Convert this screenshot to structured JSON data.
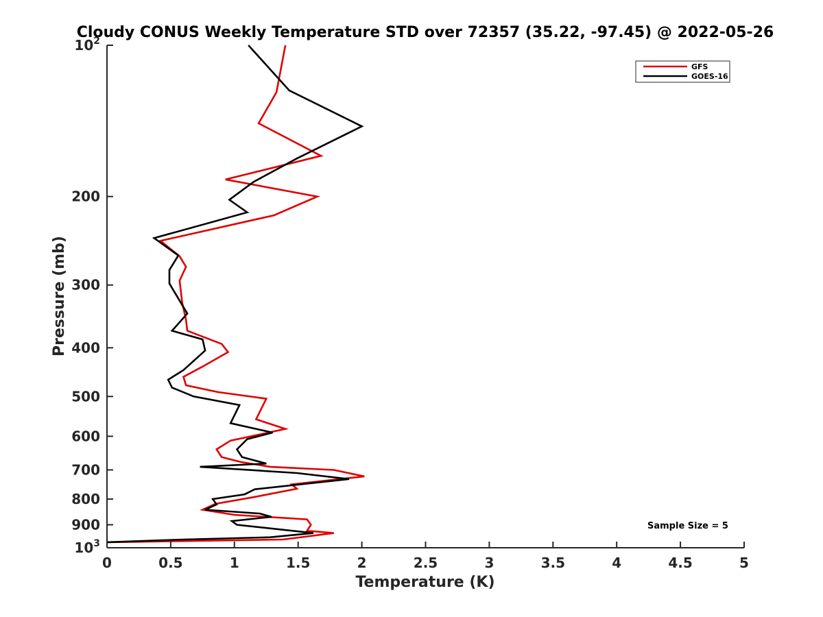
{
  "chart_data": {
    "type": "line",
    "title": "Cloudy CONUS Weekly Temperature STD over 72357 (35.22, -97.45) @ 2022-05-26",
    "xlabel": "Temperature (K)",
    "ylabel": "Pressure (mb)",
    "xlim": [
      0,
      5
    ],
    "ylim": [
      100,
      1000
    ],
    "y_scale": "log",
    "y_reversed": true,
    "x_ticks": [
      0,
      0.5,
      1,
      1.5,
      2,
      2.5,
      3,
      3.5,
      4,
      4.5,
      5
    ],
    "x_tick_labels": [
      "0",
      "0.5",
      "1",
      "1.5",
      "2",
      "2.5",
      "3",
      "3.5",
      "4",
      "4.5",
      "5"
    ],
    "y_ticks": [
      100,
      200,
      300,
      400,
      500,
      600,
      700,
      800,
      900,
      1000
    ],
    "y_tick_labels": [
      {
        "base": "10",
        "exp": "2"
      },
      {
        "base": "200",
        "exp": ""
      },
      {
        "base": "300",
        "exp": ""
      },
      {
        "base": "400",
        "exp": ""
      },
      {
        "base": "500",
        "exp": ""
      },
      {
        "base": "600",
        "exp": ""
      },
      {
        "base": "700",
        "exp": ""
      },
      {
        "base": "800",
        "exp": ""
      },
      {
        "base": "900",
        "exp": ""
      },
      {
        "base": "10",
        "exp": "3"
      }
    ],
    "grid": false,
    "legend_position": "top-right",
    "annotation": "Sample Size = 5",
    "series": [
      {
        "name": "GFS",
        "color": "#e00000",
        "points": [
          [
            1.4,
            100
          ],
          [
            1.33,
            124
          ],
          [
            1.19,
            143
          ],
          [
            1.68,
            166
          ],
          [
            0.93,
            185
          ],
          [
            1.65,
            200
          ],
          [
            1.31,
            218
          ],
          [
            0.42,
            245
          ],
          [
            0.57,
            263
          ],
          [
            0.62,
            276
          ],
          [
            0.57,
            294
          ],
          [
            0.59,
            325
          ],
          [
            0.62,
            352
          ],
          [
            0.63,
            370
          ],
          [
            0.9,
            393
          ],
          [
            0.95,
            408
          ],
          [
            0.75,
            436
          ],
          [
            0.6,
            457
          ],
          [
            0.62,
            475
          ],
          [
            0.87,
            490
          ],
          [
            1.25,
            505
          ],
          [
            1.17,
            555
          ],
          [
            1.4,
            580
          ],
          [
            1.2,
            595
          ],
          [
            0.97,
            612
          ],
          [
            0.86,
            637
          ],
          [
            0.9,
            660
          ],
          [
            1.05,
            675
          ],
          [
            1.28,
            690
          ],
          [
            1.78,
            700
          ],
          [
            2.02,
            721
          ],
          [
            1.45,
            748
          ],
          [
            1.49,
            763
          ],
          [
            1.15,
            793
          ],
          [
            0.85,
            818
          ],
          [
            0.75,
            840
          ],
          [
            1.0,
            860
          ],
          [
            1.57,
            878
          ],
          [
            1.6,
            900
          ],
          [
            1.57,
            925
          ],
          [
            1.78,
            935
          ],
          [
            1.38,
            963
          ],
          [
            0.0,
            975
          ]
        ]
      },
      {
        "name": "GOES-16",
        "color": "#000000",
        "points": [
          [
            1.11,
            100
          ],
          [
            1.43,
            123
          ],
          [
            2.0,
            145
          ],
          [
            1.49,
            168
          ],
          [
            1.15,
            187
          ],
          [
            0.96,
            203
          ],
          [
            1.1,
            215
          ],
          [
            0.37,
            242
          ],
          [
            0.56,
            262
          ],
          [
            0.49,
            280
          ],
          [
            0.49,
            298
          ],
          [
            0.63,
            342
          ],
          [
            0.51,
            370
          ],
          [
            0.75,
            385
          ],
          [
            0.77,
            405
          ],
          [
            0.6,
            443
          ],
          [
            0.48,
            463
          ],
          [
            0.51,
            480
          ],
          [
            0.68,
            500
          ],
          [
            1.04,
            520
          ],
          [
            0.97,
            565
          ],
          [
            1.3,
            590
          ],
          [
            1.1,
            608
          ],
          [
            1.02,
            637
          ],
          [
            1.06,
            660
          ],
          [
            1.25,
            680
          ],
          [
            0.73,
            690
          ],
          [
            1.49,
            710
          ],
          [
            1.9,
            730
          ],
          [
            1.16,
            765
          ],
          [
            1.08,
            783
          ],
          [
            0.83,
            800
          ],
          [
            0.86,
            820
          ],
          [
            0.77,
            840
          ],
          [
            1.2,
            855
          ],
          [
            1.29,
            868
          ],
          [
            0.98,
            885
          ],
          [
            1.02,
            900
          ],
          [
            1.62,
            935
          ],
          [
            1.28,
            953
          ],
          [
            0.6,
            963
          ],
          [
            0.0,
            975
          ]
        ]
      }
    ]
  }
}
